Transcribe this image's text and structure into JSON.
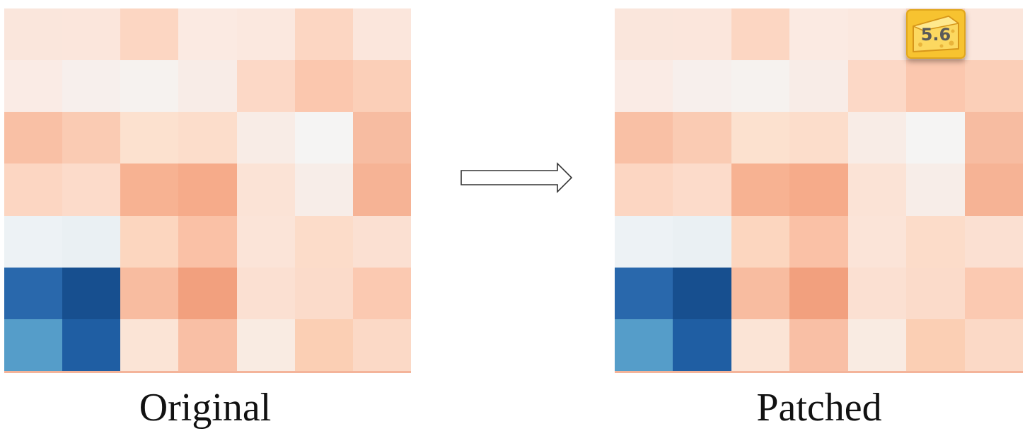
{
  "labels": {
    "original": "Original",
    "patched": "Patched"
  },
  "badge": {
    "text": "5.6",
    "icon": "cheese-icon",
    "color": "#f7c330"
  },
  "arrow": {
    "icon": "right-arrow-icon"
  },
  "palette": {
    "deep_blue": "#174f8f",
    "blue": "#2968ac",
    "light_blue": "#559dc9",
    "pale_blue": "#edf2f5",
    "near_white": "#f5f1ee",
    "salmon": "#f2a07e"
  },
  "chart_data": [
    {
      "type": "heatmap",
      "panel": "Original",
      "rows": 7,
      "cols": 7,
      "cells": [
        [
          "#fae6dc",
          "#fbe6dc",
          "#fcd6c2",
          "#fbeae2",
          "#fbe8df",
          "#fcd6c2",
          "#fbe6dc"
        ],
        [
          "#faebe5",
          "#f7efec",
          "#f6f2ef",
          "#f8ece7",
          "#fcd8c6",
          "#fbc7ae",
          "#fbcfb8"
        ],
        [
          "#f9c0a5",
          "#facbb3",
          "#fce1cf",
          "#fcddcb",
          "#f8ece6",
          "#f5f4f3",
          "#f7bca1"
        ],
        [
          "#fcd6c2",
          "#fcdbca",
          "#f7b292",
          "#f6ab8a",
          "#fbe3d6",
          "#f7ede8",
          "#f6b395"
        ],
        [
          "#edf2f5",
          "#eaf0f3",
          "#fcd6bf",
          "#fac1a6",
          "#fbe4d8",
          "#fcdcc9",
          "#fbe0d2"
        ],
        [
          "#2968ac",
          "#174f8f",
          "#f8bca0",
          "#f2a07e",
          "#fbe0d2",
          "#fbdbca",
          "#fbc9b1"
        ],
        [
          "#559dc9",
          "#1f5ea3",
          "#fbe4d6",
          "#f9bfa5",
          "#f9ebe2",
          "#fbcfb4",
          "#fbd9c6"
        ]
      ]
    },
    {
      "type": "heatmap",
      "panel": "Patched",
      "rows": 7,
      "cols": 7,
      "cells": [
        [
          "#fae6dc",
          "#fbe6dc",
          "#fcd6c2",
          "#fbeae2",
          "#fbe8df",
          "#fcd6c2",
          "#fbe6dc"
        ],
        [
          "#faebe5",
          "#f7efec",
          "#f6f2ef",
          "#f8ece7",
          "#fcd8c6",
          "#fbc7ae",
          "#fbcfb8"
        ],
        [
          "#f9c0a5",
          "#facbb3",
          "#fce1cf",
          "#fcddcb",
          "#f8ece6",
          "#f5f4f3",
          "#f7bca1"
        ],
        [
          "#fcd6c2",
          "#fcdbca",
          "#f7b292",
          "#f6ab8a",
          "#fbe3d6",
          "#f7ede8",
          "#f6b395"
        ],
        [
          "#edf2f5",
          "#eaf0f3",
          "#fcd6bf",
          "#fac1a6",
          "#fbe4d8",
          "#fcdcc9",
          "#fbe0d2"
        ],
        [
          "#2968ac",
          "#174f8f",
          "#f8bca0",
          "#f2a07e",
          "#fbe0d2",
          "#fbdbca",
          "#fbc9b1"
        ],
        [
          "#559dc9",
          "#1f5ea3",
          "#fbe4d6",
          "#f9bfa5",
          "#f9ebe2",
          "#fbcfb4",
          "#fbd9c6"
        ]
      ]
    }
  ]
}
